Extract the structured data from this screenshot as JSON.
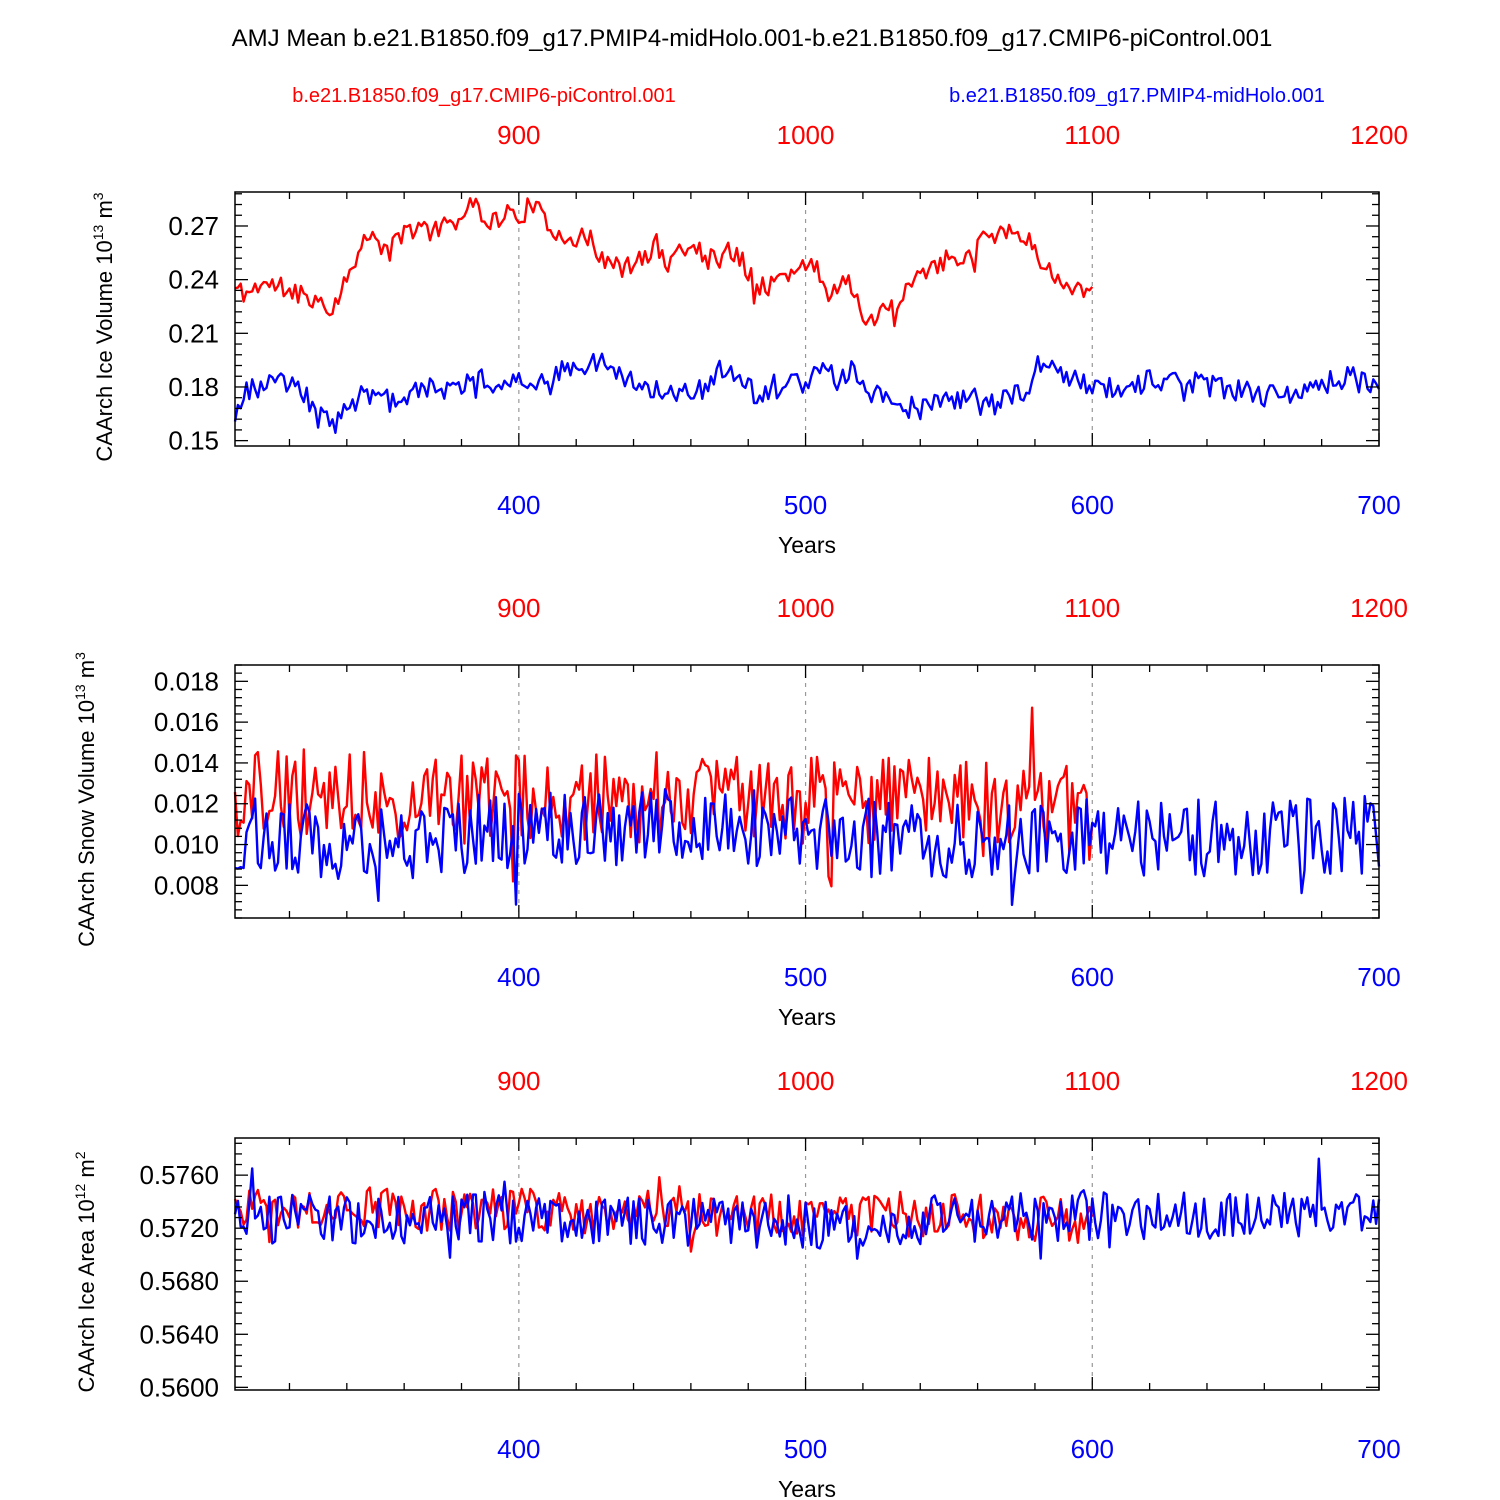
{
  "title": "AMJ Mean b.e21.B1850.f09_g17.PMIP4-midHolo.001-b.e21.B1850.f09_g17.CMIP6-piControl.001",
  "legend": {
    "left_label": "b.e21.B1850.f09_g17.CMIP6-piControl.001",
    "right_label": "b.e21.B1850.f09_g17.PMIP4-midHolo.001"
  },
  "colors": {
    "control": "#ff0000",
    "midholo": "#0000ff",
    "axis": "#000000",
    "grid": "#999999"
  },
  "chart_data": [
    {
      "type": "line",
      "ylabel_main": "CAArch Ice Volume 10",
      "ylabel_exp": "13",
      "ylabel_unit": "m",
      "ylabel_unit_exp": "3",
      "xlabel": "Years",
      "xlim": [
        301,
        700
      ],
      "ylim": [
        0.147,
        0.289
      ],
      "yticks": [
        0.15,
        0.18,
        0.21,
        0.24,
        0.27
      ],
      "ytick_labels": [
        "0.15",
        "0.18",
        "0.21",
        "0.24",
        "0.27"
      ],
      "bottom_ticks": [
        400,
        500,
        600,
        700
      ],
      "bottom_tick_labels": [
        "400",
        "500",
        "600",
        "700"
      ],
      "top_ticks": [
        900,
        1000,
        1100,
        1200
      ],
      "top_tick_labels": [
        "900",
        "1000",
        "1100",
        "1200"
      ],
      "top_offset": 500,
      "series": [
        {
          "name": "b.e21.B1850.f09_g17.CMIP6-piControl.001",
          "color": "#ff0000",
          "x_start": 301,
          "x_end": 600,
          "n": 300,
          "anchors": [
            [
              301,
              0.235
            ],
            [
              305,
              0.232
            ],
            [
              310,
              0.238
            ],
            [
              318,
              0.235
            ],
            [
              325,
              0.232
            ],
            [
              331,
              0.228
            ],
            [
              334,
              0.222
            ],
            [
              340,
              0.24
            ],
            [
              345,
              0.262
            ],
            [
              350,
              0.262
            ],
            [
              355,
              0.255
            ],
            [
              360,
              0.268
            ],
            [
              365,
              0.268
            ],
            [
              370,
              0.268
            ],
            [
              376,
              0.272
            ],
            [
              380,
              0.275
            ],
            [
              385,
              0.283
            ],
            [
              390,
              0.272
            ],
            [
              396,
              0.277
            ],
            [
              400,
              0.275
            ],
            [
              405,
              0.283
            ],
            [
              410,
              0.269
            ],
            [
              415,
              0.266
            ],
            [
              420,
              0.263
            ],
            [
              425,
              0.262
            ],
            [
              430,
              0.25
            ],
            [
              436,
              0.246
            ],
            [
              442,
              0.25
            ],
            [
              448,
              0.26
            ],
            [
              452,
              0.247
            ],
            [
              456,
              0.259
            ],
            [
              462,
              0.257
            ],
            [
              468,
              0.251
            ],
            [
              474,
              0.256
            ],
            [
              478,
              0.251
            ],
            [
              482,
              0.24
            ],
            [
              486,
              0.235
            ],
            [
              490,
              0.242
            ],
            [
              495,
              0.24
            ],
            [
              500,
              0.249
            ],
            [
              503,
              0.249
            ],
            [
              507,
              0.237
            ],
            [
              512,
              0.235
            ],
            [
              515,
              0.24
            ],
            [
              520,
              0.223
            ],
            [
              524,
              0.212
            ],
            [
              528,
              0.227
            ],
            [
              532,
              0.221
            ],
            [
              536,
              0.236
            ],
            [
              540,
              0.245
            ],
            [
              545,
              0.245
            ],
            [
              550,
              0.254
            ],
            [
              555,
              0.252
            ],
            [
              560,
              0.257
            ],
            [
              563,
              0.27
            ],
            [
              566,
              0.265
            ],
            [
              570,
              0.269
            ],
            [
              575,
              0.265
            ],
            [
              580,
              0.257
            ],
            [
              585,
              0.245
            ],
            [
              590,
              0.235
            ],
            [
              595,
              0.237
            ],
            [
              600,
              0.235
            ]
          ],
          "amp": 0.006,
          "seed": 11
        },
        {
          "name": "b.e21.B1850.f09_g17.PMIP4-midHolo.001",
          "color": "#0000ff",
          "x_start": 301,
          "x_end": 700,
          "n": 400,
          "anchors": [
            [
              301,
              0.166
            ],
            [
              306,
              0.177
            ],
            [
              312,
              0.183
            ],
            [
              318,
              0.182
            ],
            [
              325,
              0.176
            ],
            [
              332,
              0.165
            ],
            [
              336,
              0.16
            ],
            [
              340,
              0.171
            ],
            [
              346,
              0.175
            ],
            [
              352,
              0.174
            ],
            [
              358,
              0.169
            ],
            [
              364,
              0.181
            ],
            [
              370,
              0.179
            ],
            [
              376,
              0.178
            ],
            [
              382,
              0.183
            ],
            [
              388,
              0.184
            ],
            [
              395,
              0.182
            ],
            [
              402,
              0.184
            ],
            [
              410,
              0.186
            ],
            [
              418,
              0.19
            ],
            [
              425,
              0.189
            ],
            [
              430,
              0.196
            ],
            [
              436,
              0.186
            ],
            [
              442,
              0.181
            ],
            [
              448,
              0.18
            ],
            [
              454,
              0.178
            ],
            [
              460,
              0.175
            ],
            [
              466,
              0.18
            ],
            [
              470,
              0.19
            ],
            [
              476,
              0.187
            ],
            [
              482,
              0.177
            ],
            [
              488,
              0.176
            ],
            [
              494,
              0.181
            ],
            [
              500,
              0.182
            ],
            [
              506,
              0.188
            ],
            [
              512,
              0.184
            ],
            [
              518,
              0.188
            ],
            [
              524,
              0.176
            ],
            [
              530,
              0.168
            ],
            [
              536,
              0.168
            ],
            [
              542,
              0.171
            ],
            [
              548,
              0.175
            ],
            [
              555,
              0.172
            ],
            [
              560,
              0.171
            ],
            [
              566,
              0.17
            ],
            [
              572,
              0.174
            ],
            [
              578,
              0.181
            ],
            [
              582,
              0.195
            ],
            [
              587,
              0.192
            ],
            [
              592,
              0.186
            ],
            [
              598,
              0.181
            ],
            [
              605,
              0.18
            ],
            [
              612,
              0.181
            ],
            [
              620,
              0.183
            ],
            [
              628,
              0.182
            ],
            [
              636,
              0.183
            ],
            [
              644,
              0.18
            ],
            [
              652,
              0.177
            ],
            [
              660,
              0.175
            ],
            [
              668,
              0.177
            ],
            [
              676,
              0.178
            ],
            [
              684,
              0.183
            ],
            [
              690,
              0.186
            ],
            [
              696,
              0.181
            ],
            [
              700,
              0.177
            ]
          ],
          "amp": 0.0065,
          "seed": 23
        }
      ]
    },
    {
      "type": "line",
      "ylabel_main": "CAArch Snow Volume 10",
      "ylabel_exp": "13",
      "ylabel_unit": "m",
      "ylabel_unit_exp": "3",
      "xlabel": "Years",
      "xlim": [
        301,
        700
      ],
      "ylim": [
        0.0064,
        0.0188
      ],
      "yticks": [
        0.008,
        0.01,
        0.012,
        0.014,
        0.016,
        0.018
      ],
      "ytick_labels": [
        "0.008",
        "0.010",
        "0.012",
        "0.014",
        "0.016",
        "0.018"
      ],
      "bottom_ticks": [
        400,
        500,
        600,
        700
      ],
      "bottom_tick_labels": [
        "400",
        "500",
        "600",
        "700"
      ],
      "top_ticks": [
        900,
        1000,
        1100,
        1200
      ],
      "top_tick_labels": [
        "900",
        "1000",
        "1100",
        "1200"
      ],
      "top_offset": 500,
      "series": [
        {
          "name": "b.e21.B1850.f09_g17.CMIP6-piControl.001",
          "color": "#ff0000",
          "x_start": 301,
          "x_end": 600,
          "n": 300,
          "anchors": [
            [
              301,
              0.0125
            ],
            [
              340,
              0.0125
            ],
            [
              380,
              0.0122
            ],
            [
              420,
              0.0124
            ],
            [
              460,
              0.0122
            ],
            [
              500,
              0.0121
            ],
            [
              540,
              0.0122
            ],
            [
              580,
              0.0123
            ],
            [
              600,
              0.0113
            ]
          ],
          "amp": 0.0022,
          "seed": 37
        },
        {
          "name": "b.e21.B1850.f09_g17.PMIP4-midHolo.001",
          "color": "#0000ff",
          "x_start": 301,
          "x_end": 700,
          "n": 400,
          "anchors": [
            [
              301,
              0.0105
            ],
            [
              350,
              0.01
            ],
            [
              400,
              0.0108
            ],
            [
              450,
              0.0109
            ],
            [
              500,
              0.0107
            ],
            [
              550,
              0.0102
            ],
            [
              600,
              0.0104
            ],
            [
              650,
              0.0103
            ],
            [
              700,
              0.0105
            ]
          ],
          "amp": 0.0019,
          "seed": 53
        }
      ]
    },
    {
      "type": "line",
      "ylabel_main": "CAArch Ice Area 10",
      "ylabel_exp": "12",
      "ylabel_unit": "m",
      "ylabel_unit_exp": "2",
      "xlabel": "Years",
      "xlim": [
        301,
        700
      ],
      "ylim": [
        0.5598,
        0.5788
      ],
      "yticks": [
        0.56,
        0.564,
        0.568,
        0.572,
        0.576
      ],
      "ytick_labels": [
        "0.5600",
        "0.5640",
        "0.5680",
        "0.5720",
        "0.5760"
      ],
      "bottom_ticks": [
        400,
        500,
        600,
        700
      ],
      "bottom_tick_labels": [
        "400",
        "500",
        "600",
        "700"
      ],
      "top_ticks": [
        900,
        1000,
        1100,
        1200
      ],
      "top_tick_labels": [
        "900",
        "1000",
        "1100",
        "1200"
      ],
      "top_offset": 500,
      "series": [
        {
          "name": "b.e21.B1850.f09_g17.CMIP6-piControl.001",
          "color": "#ff0000",
          "x_start": 301,
          "x_end": 600,
          "n": 300,
          "anchors": [
            [
              301,
              0.5733
            ],
            [
              350,
              0.5735
            ],
            [
              400,
              0.5734
            ],
            [
              450,
              0.5731
            ],
            [
              500,
              0.5729
            ],
            [
              550,
              0.5731
            ],
            [
              600,
              0.5725
            ]
          ],
          "amp": 0.0017,
          "seed": 71
        },
        {
          "name": "b.e21.B1850.f09_g17.PMIP4-midHolo.001",
          "color": "#0000ff",
          "x_start": 301,
          "x_end": 700,
          "n": 400,
          "anchors": [
            [
              301,
              0.5728
            ],
            [
              350,
              0.5725
            ],
            [
              400,
              0.5727
            ],
            [
              450,
              0.5726
            ],
            [
              500,
              0.5723
            ],
            [
              550,
              0.5726
            ],
            [
              600,
              0.573
            ],
            [
              650,
              0.5731
            ],
            [
              700,
              0.5735
            ]
          ],
          "amp": 0.0019,
          "seed": 97
        }
      ]
    }
  ]
}
